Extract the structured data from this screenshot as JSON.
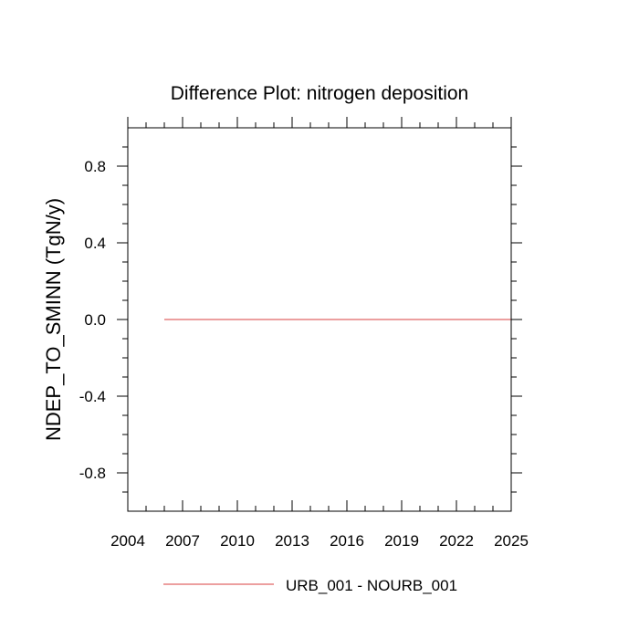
{
  "chart_data": {
    "type": "line",
    "title": "Difference Plot: nitrogen deposition",
    "xlabel": "",
    "ylabel": "NDEP_TO_SMINN  (TgN/y)",
    "xlim": [
      2004,
      2025
    ],
    "ylim": [
      -1.0,
      1.0
    ],
    "x_ticks": [
      2004,
      2007,
      2010,
      2013,
      2016,
      2019,
      2022,
      2025
    ],
    "x_tick_labels": [
      "2004",
      "2007",
      "2010",
      "2013",
      "2016",
      "2019",
      "2022",
      "2025"
    ],
    "y_ticks": [
      0.8,
      0.4,
      0.0,
      -0.4,
      -0.8
    ],
    "y_tick_labels": [
      "0.8",
      "0.4",
      "0.0",
      "-0.4",
      "-0.8"
    ],
    "grid": false,
    "legend_position": "bottom",
    "series": [
      {
        "name": "URB_001 - NOURB_001",
        "color": "#e06666",
        "x": [
          2006,
          2025
        ],
        "y": [
          0.0,
          0.0
        ]
      }
    ]
  }
}
